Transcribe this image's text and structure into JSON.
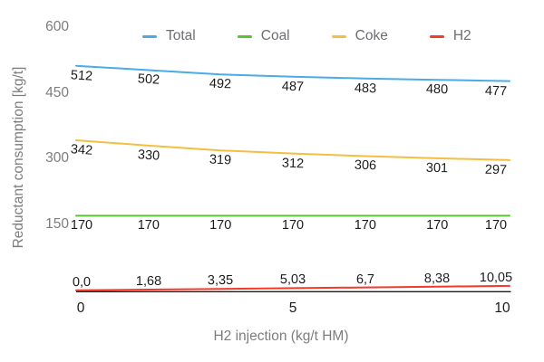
{
  "chart_data": {
    "type": "line",
    "title": "",
    "xlabel": "H2 injection (kg/t HM)",
    "ylabel": "Reductant consumption [kg/t]",
    "x": [
      0,
      1.67,
      3.33,
      5,
      6.67,
      8.33,
      10
    ],
    "xlim": [
      0,
      10
    ],
    "ylim": [
      0,
      600
    ],
    "grid": false,
    "legend_position": "top",
    "xticks": [
      {
        "value": 0,
        "label": "0"
      },
      {
        "value": 5,
        "label": "5"
      },
      {
        "value": 10,
        "label": "10"
      }
    ],
    "yticks": [
      {
        "value": 150,
        "label": "150"
      },
      {
        "value": 300,
        "label": "300"
      },
      {
        "value": 450,
        "label": "450"
      },
      {
        "value": 600,
        "label": "600"
      }
    ],
    "series": [
      {
        "name": "Total",
        "color": "#47ACE8",
        "values": [
          512,
          502,
          492,
          487,
          483,
          480,
          477
        ],
        "labels": [
          "512",
          "502",
          "492",
          "487",
          "483",
          "480",
          "477"
        ],
        "label_side": "below"
      },
      {
        "name": "Coal",
        "color": "#5BC236",
        "values": [
          170,
          170,
          170,
          170,
          170,
          170,
          170
        ],
        "labels": [
          "170",
          "170",
          "170",
          "170",
          "170",
          "170",
          "170"
        ],
        "label_side": "below"
      },
      {
        "name": "Coke",
        "color": "#F5BE41",
        "values": [
          342,
          330,
          319,
          312,
          306,
          301,
          297
        ],
        "labels": [
          "342",
          "330",
          "319",
          "312",
          "306",
          "301",
          "297"
        ],
        "label_side": "below"
      },
      {
        "name": "H2",
        "color": "#F5392A",
        "values": [
          0,
          1.68,
          3.35,
          5.03,
          6.7,
          8.38,
          10.05
        ],
        "labels": [
          "0,0",
          "1,68",
          "3,35",
          "5,03",
          "6,7",
          "8,38",
          "10,05"
        ],
        "label_side": "above"
      }
    ]
  },
  "colors": {
    "background": "#ffffff",
    "axis_line": "#1b1b1d",
    "axis_tick_text_x": "#1b1b1d",
    "axis_tick_text_y": "#7d7d80",
    "axis_title_text": "#7d7d80",
    "data_label_text": "#1b1b1d",
    "legend_text": "#6e6e73",
    "series_total": "#47ACE8",
    "series_coal": "#5BC236",
    "series_coke": "#F5BE41",
    "series_h2": "#F5392A"
  }
}
